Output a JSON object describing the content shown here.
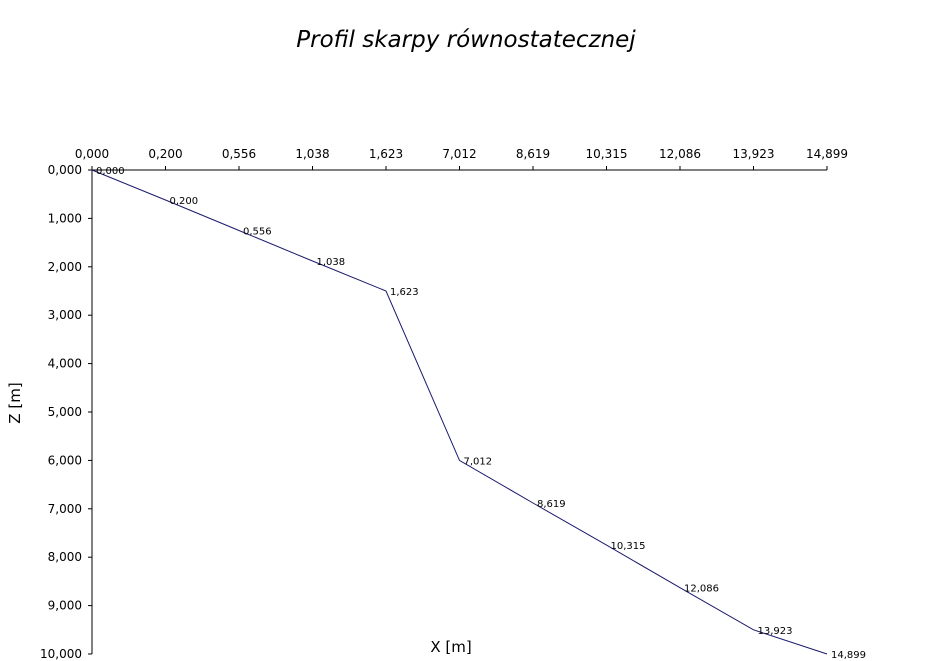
{
  "chart_data": {
    "type": "line",
    "title": "Profil skarpy równostatecznej",
    "xlabel": "X [m]",
    "ylabel": "Z [m]",
    "x_axis_position": "top",
    "y_axis_inverted": true,
    "grid": false,
    "legend": "none",
    "x_tick_labels": [
      "0,000",
      "0,200",
      "0,556",
      "1,038",
      "1,623",
      "7,012",
      "8,619",
      "10,315",
      "12,086",
      "13,923",
      "14,899"
    ],
    "y_tick_labels": [
      "0,000",
      "1,000",
      "2,000",
      "3,000",
      "4,000",
      "5,000",
      "6,000",
      "7,000",
      "8,000",
      "9,000",
      "10,000"
    ],
    "ylim": [
      0,
      10
    ],
    "series": [
      {
        "color": "#1a1a6e",
        "points": [
          {
            "x_label": "0,000",
            "z": 0.0
          },
          {
            "x_label": "0,200",
            "z": 0.62
          },
          {
            "x_label": "0,556",
            "z": 1.25
          },
          {
            "x_label": "1,038",
            "z": 1.88
          },
          {
            "x_label": "1,623",
            "z": 2.5
          },
          {
            "x_label": "7,012",
            "z": 6.0
          },
          {
            "x_label": "8,619",
            "z": 6.88
          },
          {
            "x_label": "10,315",
            "z": 7.75
          },
          {
            "x_label": "12,086",
            "z": 8.63
          },
          {
            "x_label": "13,923",
            "z": 9.5
          },
          {
            "x_label": "14,899",
            "z": 10.0
          }
        ]
      }
    ]
  }
}
